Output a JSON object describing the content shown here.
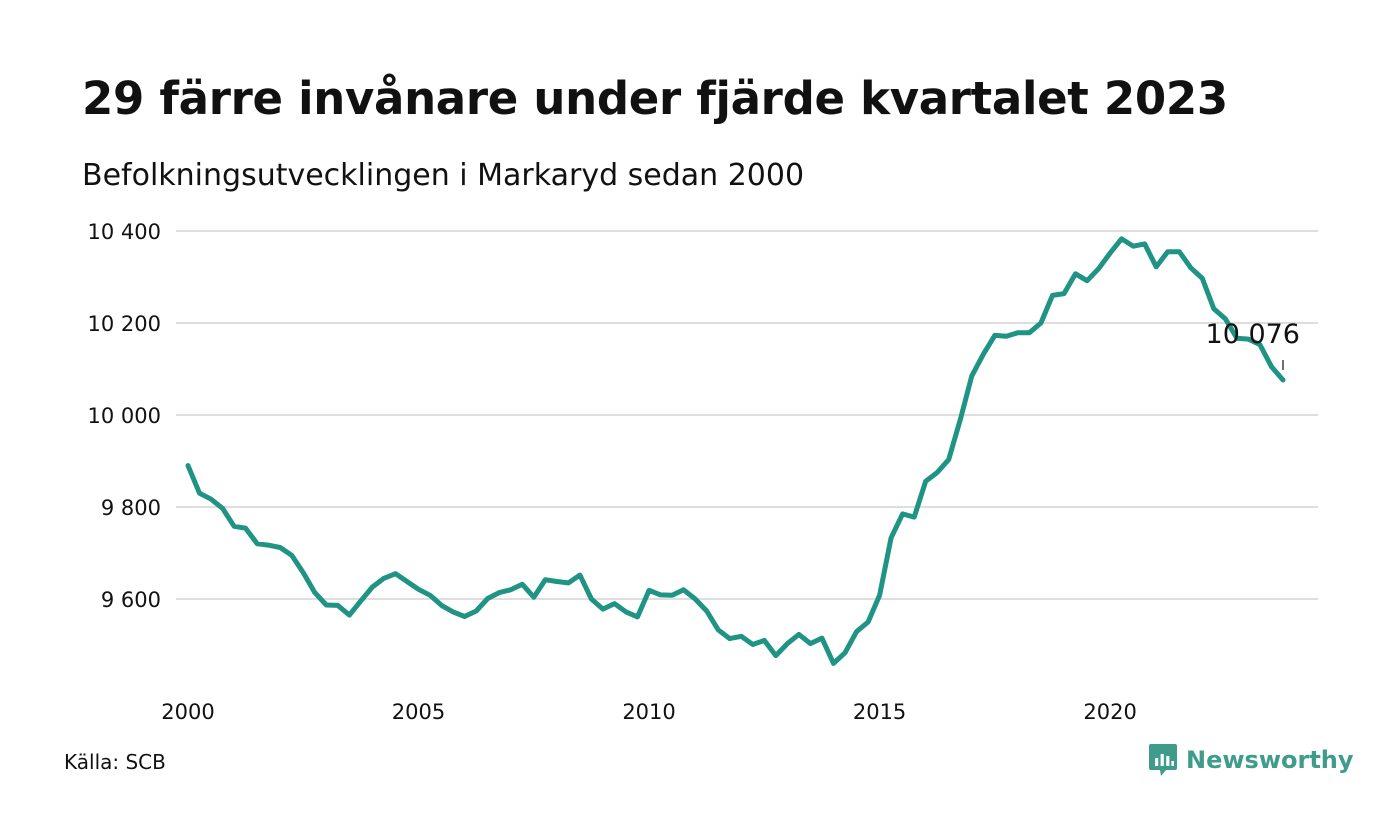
{
  "title": "29 färre invånare under fjärde kvartalet 2023",
  "subtitle": "Befolkningsutvecklingen i Markaryd sedan 2000",
  "source": "Källa: SCB",
  "brand": {
    "name": "Newsworthy",
    "icon": "newsworthy-logo-icon",
    "color": "#3f9c8a"
  },
  "chart_data": {
    "type": "line",
    "title": "29 färre invånare under fjärde kvartalet 2023",
    "xlabel": "",
    "ylabel": "",
    "grid": true,
    "line_color": "#1f9384",
    "x_start": 2000,
    "x_step": 0.25,
    "xlim": [
      2000,
      2023.75
    ],
    "ylim": [
      9430,
      10400
    ],
    "x_ticks": [
      2000,
      2005,
      2010,
      2015,
      2020
    ],
    "x_tick_labels": [
      "2000",
      "2005",
      "2010",
      "2015",
      "2020"
    ],
    "y_ticks": [
      9600,
      9800,
      10000,
      10200,
      10400
    ],
    "y_tick_labels": [
      "9 600",
      "9 800",
      "10 000",
      "10 200",
      "10 400"
    ],
    "values": [
      9890,
      9830,
      9817,
      9797,
      9758,
      9754,
      9720,
      9717,
      9712,
      9695,
      9657,
      9614,
      9587,
      9586,
      9565,
      9596,
      9626,
      9645,
      9655,
      9638,
      9621,
      9608,
      9586,
      9572,
      9562,
      9574,
      9601,
      9614,
      9620,
      9632,
      9604,
      9642,
      9638,
      9635,
      9652,
      9600,
      9578,
      9590,
      9572,
      9561,
      9619,
      9609,
      9608,
      9620,
      9600,
      9574,
      9533,
      9514,
      9519,
      9501,
      9510,
      9477,
      9503,
      9523,
      9503,
      9515,
      9460,
      9483,
      9529,
      9550,
      9608,
      9733,
      9785,
      9778,
      9856,
      9875,
      9903,
      9990,
      10085,
      10132,
      10173,
      10171,
      10179,
      10179,
      10200,
      10260,
      10264,
      10307,
      10292,
      10318,
      10352,
      10383,
      10367,
      10372,
      10322,
      10355,
      10355,
      10320,
      10297,
      10231,
      10209,
      10167,
      10165,
      10153,
      10105,
      10076
    ],
    "annotation": {
      "label": "10 076",
      "value": 10076,
      "x": 2023.75
    }
  }
}
